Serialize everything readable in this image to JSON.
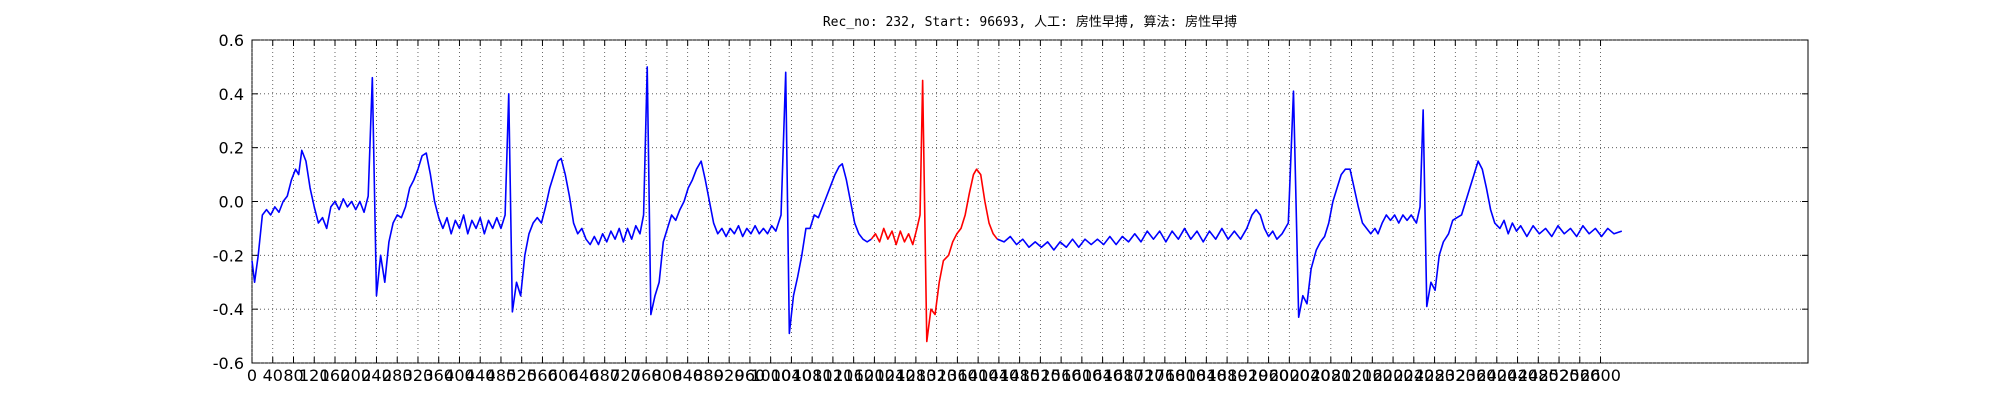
{
  "chart_data": {
    "type": "line",
    "title": "Rec_no: 232, Start: 96693, 人工: 房性早搏, 算法: 房性早搏",
    "xlim": [
      0,
      3000
    ],
    "xticks": [
      0,
      40,
      80,
      120,
      160,
      200,
      240,
      280,
      320,
      360,
      400,
      440,
      480,
      520,
      560,
      600,
      640,
      680,
      720,
      760,
      800,
      840,
      880,
      920,
      960,
      1000,
      1040,
      1080,
      1120,
      1160,
      1200,
      1240,
      1280,
      1320,
      1360,
      1400,
      1440,
      1480,
      1520,
      1560,
      1600,
      1640,
      1680,
      1720,
      1760,
      1800,
      1840,
      1880,
      1920,
      1960,
      2000,
      2040,
      2080,
      2120,
      2160,
      2200,
      2240,
      2280,
      2320,
      2360,
      2400,
      2440,
      2480,
      2520,
      2560,
      2600
    ],
    "ylim": [
      -0.6,
      0.6
    ],
    "yticks": [
      -0.6,
      -0.4,
      -0.2,
      {
        "value": 0,
        "label": "0.0"
      },
      0.2,
      0.4,
      0.6
    ],
    "grid": true,
    "series": [
      {
        "color": "#0000ff",
        "x": [
          0,
          5,
          12,
          20,
          28,
          36,
          44,
          52,
          60,
          68,
          76,
          84,
          90,
          96,
          104,
          112,
          120,
          128,
          136,
          144,
          152,
          160,
          168,
          176,
          184,
          192,
          200,
          208,
          216,
          224,
          232,
          240,
          248,
          256,
          264,
          272,
          280,
          288,
          296,
          304,
          312,
          320,
          328,
          336,
          344,
          352,
          360,
          368,
          376,
          384,
          392,
          400,
          408,
          416,
          424,
          432,
          440,
          448,
          456,
          464,
          472,
          480,
          488,
          495,
          502,
          510,
          518,
          526,
          534,
          542,
          550,
          558,
          566,
          574,
          582,
          590,
          596,
          604,
          612,
          620,
          628,
          636,
          644,
          652,
          660,
          668,
          676,
          684,
          692,
          700,
          708,
          716,
          724,
          732,
          740,
          748,
          755,
          762,
          769,
          777,
          785,
          793,
          801,
          809,
          817,
          825,
          833,
          841,
          849,
          857,
          866,
          874,
          882,
          890,
          898,
          906,
          914,
          922,
          930,
          938,
          946,
          954,
          962,
          970,
          978,
          986,
          994,
          1002,
          1010,
          1020,
          1029,
          1036,
          1044,
          1052,
          1060,
          1068,
          1076,
          1084,
          1092,
          1100,
          1108,
          1116,
          1124,
          1132,
          1138,
          1146,
          1154,
          1162,
          1170,
          1178,
          1186,
          1194
        ],
        "values": [
          -0.22,
          -0.3,
          -0.2,
          -0.05,
          -0.03,
          -0.05,
          -0.02,
          -0.04,
          0.0,
          0.02,
          0.08,
          0.12,
          0.1,
          0.19,
          0.15,
          0.05,
          -0.02,
          -0.08,
          -0.06,
          -0.1,
          -0.02,
          0.0,
          -0.03,
          0.01,
          -0.02,
          0.0,
          -0.03,
          0.0,
          -0.04,
          0.02,
          0.46,
          -0.35,
          -0.2,
          -0.3,
          -0.15,
          -0.08,
          -0.05,
          -0.06,
          -0.02,
          0.05,
          0.08,
          0.12,
          0.17,
          0.18,
          0.1,
          0.0,
          -0.06,
          -0.1,
          -0.06,
          -0.12,
          -0.07,
          -0.1,
          -0.05,
          -0.12,
          -0.07,
          -0.1,
          -0.06,
          -0.12,
          -0.07,
          -0.1,
          -0.06,
          -0.1,
          -0.05,
          0.4,
          -0.41,
          -0.3,
          -0.35,
          -0.2,
          -0.12,
          -0.08,
          -0.06,
          -0.08,
          -0.02,
          0.05,
          0.1,
          0.15,
          0.16,
          0.1,
          0.02,
          -0.08,
          -0.12,
          -0.1,
          -0.14,
          -0.16,
          -0.13,
          -0.16,
          -0.12,
          -0.15,
          -0.11,
          -0.14,
          -0.1,
          -0.15,
          -0.1,
          -0.14,
          -0.09,
          -0.12,
          -0.05,
          0.5,
          -0.42,
          -0.35,
          -0.3,
          -0.15,
          -0.1,
          -0.05,
          -0.07,
          -0.03,
          0.0,
          0.05,
          0.08,
          0.12,
          0.15,
          0.08,
          0.0,
          -0.08,
          -0.12,
          -0.1,
          -0.13,
          -0.1,
          -0.12,
          -0.09,
          -0.13,
          -0.1,
          -0.12,
          -0.09,
          -0.12,
          -0.1,
          -0.12,
          -0.09,
          -0.11,
          -0.05,
          0.48,
          -0.49,
          -0.35,
          -0.28,
          -0.2,
          -0.1,
          -0.1,
          -0.05,
          -0.06,
          -0.02,
          0.02,
          0.06,
          0.1,
          0.13,
          0.14,
          0.08,
          0.0,
          -0.08,
          -0.12,
          -0.14,
          -0.15,
          -0.14
        ]
      },
      {
        "color": "#ff0000",
        "x": [
          1194,
          1202,
          1210,
          1218,
          1226,
          1234,
          1242,
          1250,
          1258,
          1266,
          1274,
          1282,
          1288,
          1293,
          1301,
          1309,
          1317,
          1325,
          1333,
          1343,
          1351,
          1359,
          1367,
          1375,
          1383,
          1391,
          1397,
          1405,
          1413,
          1421,
          1429,
          1437
        ],
        "values": [
          -0.14,
          -0.12,
          -0.15,
          -0.1,
          -0.14,
          -0.11,
          -0.16,
          -0.11,
          -0.15,
          -0.12,
          -0.16,
          -0.1,
          -0.05,
          0.45,
          -0.52,
          -0.4,
          -0.42,
          -0.3,
          -0.22,
          -0.2,
          -0.15,
          -0.12,
          -0.1,
          -0.05,
          0.03,
          0.1,
          0.12,
          0.1,
          0.0,
          -0.08,
          -0.12,
          -0.14
        ]
      },
      {
        "color": "#0000ff",
        "x": [
          1437,
          1450,
          1462,
          1474,
          1486,
          1498,
          1510,
          1522,
          1534,
          1546,
          1558,
          1570,
          1582,
          1594,
          1606,
          1618,
          1630,
          1642,
          1654,
          1666,
          1678,
          1690,
          1702,
          1714,
          1726,
          1738,
          1750,
          1762,
          1774,
          1786,
          1798,
          1810,
          1822,
          1834,
          1846,
          1858,
          1870,
          1882,
          1894,
          1906,
          1918,
          1928,
          1936,
          1944,
          1952,
          1960,
          1968,
          1976,
          1986,
          1998,
          2008,
          2018,
          2026,
          2034,
          2042,
          2052,
          2060,
          2068,
          2076,
          2084,
          2092,
          2100,
          2108,
          2117,
          2125,
          2133,
          2141,
          2149,
          2157,
          2165,
          2171,
          2179,
          2187,
          2195,
          2203,
          2211,
          2219,
          2227,
          2235,
          2245,
          2252,
          2258,
          2265,
          2273,
          2281,
          2289,
          2297,
          2307,
          2315,
          2323,
          2332,
          2340,
          2348,
          2356,
          2364,
          2372,
          2380,
          2388,
          2396,
          2406,
          2414,
          2422,
          2430,
          2438,
          2446,
          2458,
          2470,
          2482,
          2494,
          2506,
          2518,
          2530,
          2542,
          2554,
          2566,
          2578,
          2590,
          2602,
          2614,
          2626,
          2641
        ],
        "values": [
          -0.14,
          -0.15,
          -0.13,
          -0.16,
          -0.14,
          -0.17,
          -0.15,
          -0.17,
          -0.15,
          -0.18,
          -0.15,
          -0.17,
          -0.14,
          -0.17,
          -0.14,
          -0.16,
          -0.14,
          -0.16,
          -0.13,
          -0.16,
          -0.13,
          -0.15,
          -0.12,
          -0.15,
          -0.11,
          -0.14,
          -0.11,
          -0.15,
          -0.11,
          -0.14,
          -0.1,
          -0.14,
          -0.11,
          -0.15,
          -0.11,
          -0.14,
          -0.1,
          -0.14,
          -0.11,
          -0.14,
          -0.1,
          -0.05,
          -0.03,
          -0.05,
          -0.1,
          -0.13,
          -0.11,
          -0.14,
          -0.12,
          -0.08,
          0.41,
          -0.43,
          -0.35,
          -0.38,
          -0.25,
          -0.18,
          -0.15,
          -0.13,
          -0.08,
          0.0,
          0.05,
          0.1,
          0.12,
          0.12,
          0.05,
          -0.02,
          -0.08,
          -0.1,
          -0.12,
          -0.1,
          -0.12,
          -0.08,
          -0.05,
          -0.07,
          -0.05,
          -0.08,
          -0.05,
          -0.07,
          -0.05,
          -0.08,
          -0.02,
          0.34,
          -0.39,
          -0.3,
          -0.33,
          -0.2,
          -0.15,
          -0.12,
          -0.07,
          -0.06,
          -0.05,
          0.0,
          0.05,
          0.1,
          0.15,
          0.12,
          0.05,
          -0.03,
          -0.08,
          -0.1,
          -0.07,
          -0.12,
          -0.08,
          -0.11,
          -0.09,
          -0.13,
          -0.09,
          -0.12,
          -0.1,
          -0.13,
          -0.09,
          -0.12,
          -0.1,
          -0.13,
          -0.09,
          -0.12,
          -0.1,
          -0.13,
          -0.1,
          -0.12,
          -0.11
        ]
      }
    ]
  }
}
